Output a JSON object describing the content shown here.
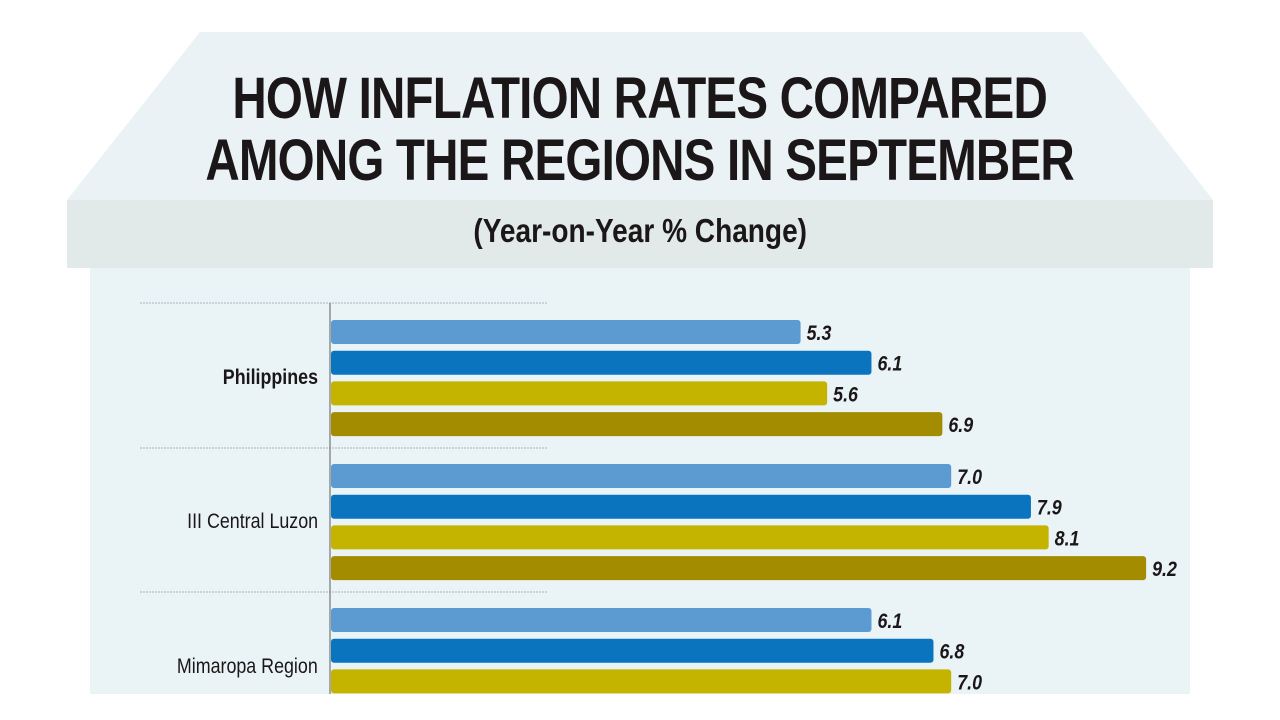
{
  "chart_data": {
    "type": "bar",
    "orientation": "horizontal",
    "title": "HOW INFLATION RATES COMPARED AMONG THE REGIONS IN SEPTEMBER",
    "title_lines": [
      "HOW INFLATION RATES COMPARED",
      "AMONG THE REGIONS IN SEPTEMBER"
    ],
    "subtitle": "(Year-on-Year % Change)",
    "categories": [
      "Philippines",
      "III Central Luzon",
      "Mimaropa Region"
    ],
    "bold_categories": [
      "Philippines"
    ],
    "series_colors": [
      "#5b9bd1",
      "#0a74bf",
      "#c4b400",
      "#a48c00"
    ],
    "groups": [
      {
        "category": "Philippines",
        "values": [
          5.3,
          6.1,
          5.6,
          6.9
        ],
        "labels": [
          "5.3",
          "6.1",
          "5.6",
          "6.9"
        ]
      },
      {
        "category": "III Central Luzon",
        "values": [
          7.0,
          7.9,
          8.1,
          9.2
        ],
        "labels": [
          "7.0",
          "7.9",
          "8.1",
          "9.2"
        ]
      },
      {
        "category": "Mimaropa Region",
        "values": [
          6.1,
          6.8,
          7.0
        ],
        "labels": [
          "6.1",
          "6.8",
          "7.0"
        ]
      }
    ],
    "xlim": [
      0,
      9.5
    ],
    "grid": false,
    "legend": "none"
  },
  "colors": {
    "background": "#eaf3f6",
    "band": "#e2e9e9",
    "text": "#1b1718"
  }
}
